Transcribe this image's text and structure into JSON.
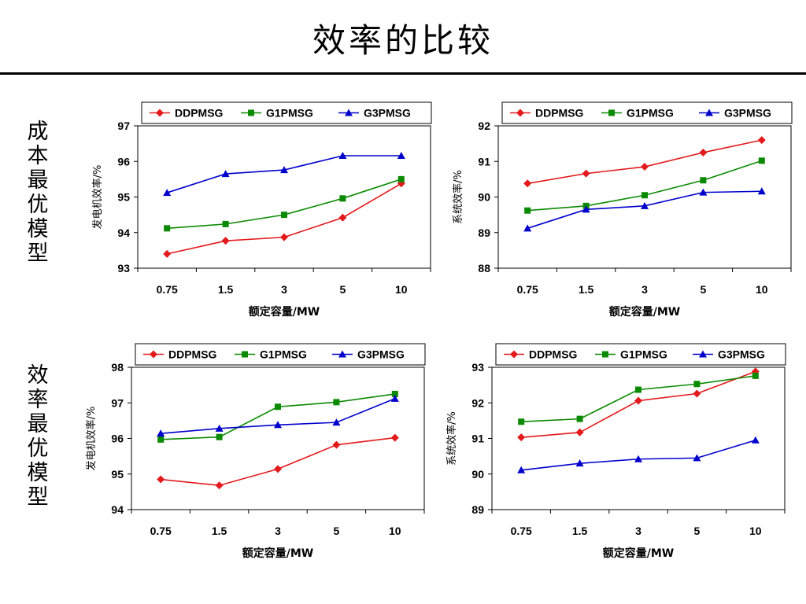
{
  "page": {
    "title": "效率的比较"
  },
  "row_labels": [
    "成本最优模型",
    "效率最优模型"
  ],
  "colors": {
    "DDPMSG": "#e31a1c",
    "G1PMSG": "#0a8a00",
    "G3PMSG": "#0000cc"
  },
  "chart_data": [
    {
      "type": "line",
      "categories": [
        "0.75",
        "1.5",
        "3",
        "5",
        "10"
      ],
      "ylabel": "发电机效率/%",
      "xlabel": "额定容量/MW",
      "ylim": [
        93,
        97
      ],
      "yticks": [
        "93",
        "94",
        "95",
        "96",
        "97"
      ],
      "legend": "top",
      "series": [
        {
          "name": "DDPMSG",
          "marker": "diamond",
          "values": [
            93.4,
            93.77,
            93.87,
            94.42,
            95.38
          ]
        },
        {
          "name": "G1PMSG",
          "marker": "square",
          "values": [
            94.12,
            94.24,
            94.5,
            94.96,
            95.5
          ]
        },
        {
          "name": "G3PMSG",
          "marker": "triangle",
          "values": [
            95.12,
            95.65,
            95.76,
            96.16,
            96.16
          ]
        }
      ]
    },
    {
      "type": "line",
      "categories": [
        "0.75",
        "1.5",
        "3",
        "5",
        "10"
      ],
      "ylabel": "系统效率/%",
      "xlabel": "额定容量/MW",
      "ylim": [
        88,
        92
      ],
      "yticks": [
        "88",
        "89",
        "90",
        "91",
        "92"
      ],
      "legend": "top",
      "series": [
        {
          "name": "DDPMSG",
          "marker": "diamond",
          "values": [
            90.38,
            90.66,
            90.85,
            91.25,
            91.6
          ]
        },
        {
          "name": "G1PMSG",
          "marker": "square",
          "values": [
            89.62,
            89.75,
            90.05,
            90.47,
            91.02
          ]
        },
        {
          "name": "G3PMSG",
          "marker": "triangle",
          "values": [
            89.12,
            89.65,
            89.75,
            90.13,
            90.16
          ]
        }
      ]
    },
    {
      "type": "line",
      "categories": [
        "0.75",
        "1.5",
        "3",
        "5",
        "10"
      ],
      "ylabel": "发电机效率/%",
      "xlabel": "额定容量/MW",
      "ylim": [
        94,
        98
      ],
      "yticks": [
        "94",
        "95",
        "96",
        "97",
        "98"
      ],
      "legend": "top",
      "series": [
        {
          "name": "DDPMSG",
          "marker": "diamond",
          "values": [
            94.85,
            94.68,
            95.14,
            95.82,
            96.02
          ]
        },
        {
          "name": "G1PMSG",
          "marker": "square",
          "values": [
            95.97,
            96.04,
            96.89,
            97.02,
            97.25
          ]
        },
        {
          "name": "G3PMSG",
          "marker": "triangle",
          "values": [
            96.14,
            96.28,
            96.38,
            96.45,
            97.12
          ]
        }
      ]
    },
    {
      "type": "line",
      "categories": [
        "0.75",
        "1.5",
        "3",
        "5",
        "10"
      ],
      "ylabel": "系统效率/%",
      "xlabel": "额定容量/MW",
      "ylim": [
        89,
        93
      ],
      "yticks": [
        "89",
        "90",
        "91",
        "92",
        "93"
      ],
      "legend": "top",
      "series": [
        {
          "name": "DDPMSG",
          "marker": "diamond",
          "values": [
            91.03,
            91.17,
            92.06,
            92.26,
            92.88
          ]
        },
        {
          "name": "G1PMSG",
          "marker": "square",
          "values": [
            91.47,
            91.55,
            92.37,
            92.53,
            92.76
          ]
        },
        {
          "name": "G3PMSG",
          "marker": "triangle",
          "values": [
            90.11,
            90.3,
            90.42,
            90.45,
            90.95
          ]
        }
      ]
    }
  ]
}
